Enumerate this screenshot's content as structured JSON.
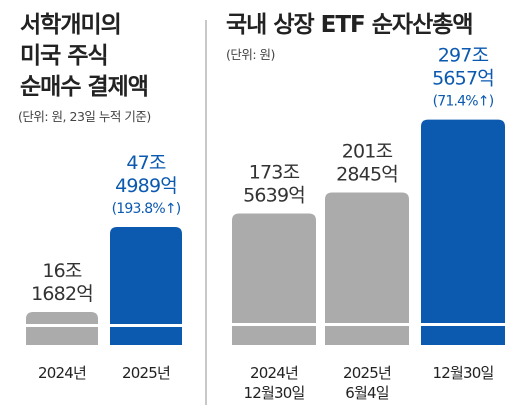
{
  "left_panel": {
    "title_lines": [
      "서학개미의",
      "미국 주식",
      "순매수 결제액"
    ],
    "unit": "(단위: 원, 23일 누적 기준)"
  },
  "right_panel": {
    "title": "국내 상장 ETF 순자산총액",
    "unit": "(단위: 원)"
  },
  "colors": {
    "gray_bar": "#ababab",
    "blue_bar": "#0b5ab0",
    "gray_text": "#333333",
    "blue_text": "#0b5ab0"
  },
  "chart_data": [
    {
      "type": "bar",
      "title": "서학개미의 미국 주식 순매수 결제액",
      "unit": "원",
      "categories": [
        "2024년",
        "2025년"
      ],
      "values": [
        161682,
        474989
      ],
      "value_unit": "억원",
      "data_labels": [
        [
          "16조",
          "1682억"
        ],
        [
          "47조",
          "4989억",
          "(193.8%↑)"
        ]
      ],
      "highlight_index": 1
    },
    {
      "type": "bar",
      "title": "국내 상장 ETF 순자산총액",
      "unit": "원",
      "categories": [
        [
          "2024년",
          "12월30일"
        ],
        [
          "2025년",
          "6월4일"
        ],
        [
          "12월30일"
        ]
      ],
      "values": [
        1735639,
        2012845,
        2975657
      ],
      "value_unit": "억원",
      "data_labels": [
        [
          "173조",
          "5639억"
        ],
        [
          "201조",
          "2845억"
        ],
        [
          "297조",
          "5657억",
          "(71.4%↑)"
        ]
      ],
      "highlight_index": 2
    }
  ]
}
